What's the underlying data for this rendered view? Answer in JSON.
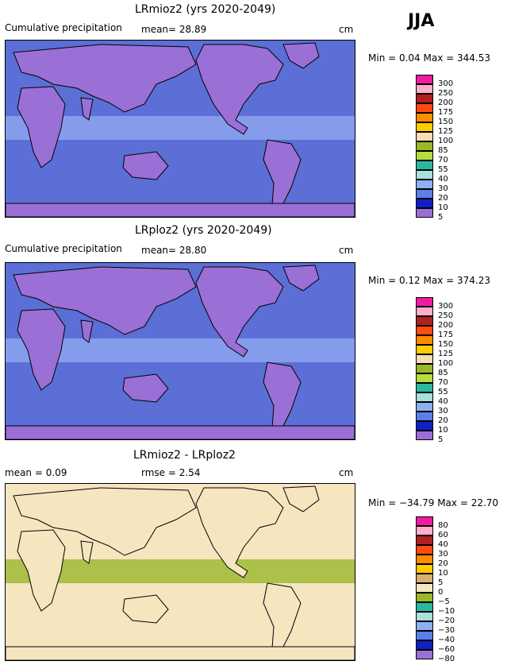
{
  "season": "JJA",
  "panels": [
    {
      "title": "LRmioz2 (yrs 2020-2049)",
      "left_label": "Cumulative precipitation",
      "stat1": "mean=  28.89",
      "stat2": "",
      "units": "cm",
      "minmax": "Min =    0.04  Max = 344.53",
      "map_background": "#5b6fd6",
      "ocean_band": "#8fa8f0",
      "land_color": "#9a6fd6",
      "cbar_labels": [
        "300",
        "250",
        "200",
        "175",
        "150",
        "125",
        "100",
        "85",
        "70",
        "55",
        "40",
        "30",
        "20",
        "10",
        "5"
      ],
      "cbar_colors": [
        "#f01aa0",
        "#ffb0c8",
        "#b02020",
        "#ff4a10",
        "#ff8c00",
        "#ffcc00",
        "#f5dfb0",
        "#9ab82a",
        "#b6dc40",
        "#2ab8a0",
        "#a8e0dc",
        "#8fb0f0",
        "#5a80e8",
        "#1020c0",
        "#9a6fd6"
      ]
    },
    {
      "title": "LRploz2 (yrs 2020-2049)",
      "left_label": "Cumulative precipitation",
      "stat1": "mean=  28.80",
      "stat2": "",
      "units": "cm",
      "minmax": "Min =    0.12  Max = 374.23",
      "map_background": "#5b6fd6",
      "ocean_band": "#8fa8f0",
      "land_color": "#9a6fd6",
      "cbar_labels": [
        "300",
        "250",
        "200",
        "175",
        "150",
        "125",
        "100",
        "85",
        "70",
        "55",
        "40",
        "30",
        "20",
        "10",
        "5"
      ],
      "cbar_colors": [
        "#f01aa0",
        "#ffb0c8",
        "#b02020",
        "#ff4a10",
        "#ff8c00",
        "#ffcc00",
        "#f5dfb0",
        "#9ab82a",
        "#b6dc40",
        "#2ab8a0",
        "#a8e0dc",
        "#8fb0f0",
        "#5a80e8",
        "#1020c0",
        "#9a6fd6"
      ]
    },
    {
      "title": "LRmioz2 - LRploz2",
      "left_label": "mean =     0.09",
      "stat1": "rmse =    2.54",
      "stat2": "",
      "units": "cm",
      "minmax": "Min = −34.79  Max =  22.70",
      "map_background": "#f5e6c0",
      "ocean_band": "#9ab82a",
      "land_color": "#f5e6c0",
      "cbar_labels": [
        "80",
        "60",
        "40",
        "30",
        "20",
        "10",
        "5",
        "0",
        "−5",
        "−10",
        "−20",
        "−30",
        "−40",
        "−60",
        "−80"
      ],
      "cbar_colors": [
        "#f01aa0",
        "#ffb0c8",
        "#b02020",
        "#ff4a10",
        "#ff8c00",
        "#ffcc00",
        "#d8b070",
        "#f5e6c0",
        "#9ab82a",
        "#2ab8a0",
        "#a8e0dc",
        "#8fb0f0",
        "#5a80e8",
        "#1020c0",
        "#9a6fd6"
      ]
    }
  ],
  "chart_data": [
    {
      "type": "heatmap",
      "title": "LRmioz2 (yrs 2020-2049)",
      "subtitle": "Cumulative precipitation",
      "mean": 28.89,
      "units": "cm",
      "min": 0.04,
      "max": 344.53,
      "season": "JJA",
      "levels": [
        5,
        10,
        20,
        30,
        40,
        55,
        70,
        85,
        100,
        125,
        150,
        175,
        200,
        250,
        300
      ]
    },
    {
      "type": "heatmap",
      "title": "LRploz2 (yrs 2020-2049)",
      "subtitle": "Cumulative precipitation",
      "mean": 28.8,
      "units": "cm",
      "min": 0.12,
      "max": 374.23,
      "season": "JJA",
      "levels": [
        5,
        10,
        20,
        30,
        40,
        55,
        70,
        85,
        100,
        125,
        150,
        175,
        200,
        250,
        300
      ]
    },
    {
      "type": "heatmap",
      "title": "LRmioz2 - LRploz2",
      "mean": 0.09,
      "rmse": 2.54,
      "units": "cm",
      "min": -34.79,
      "max": 22.7,
      "levels": [
        -80,
        -60,
        -40,
        -30,
        -20,
        -10,
        -5,
        0,
        5,
        10,
        20,
        30,
        40,
        60,
        80
      ]
    }
  ]
}
